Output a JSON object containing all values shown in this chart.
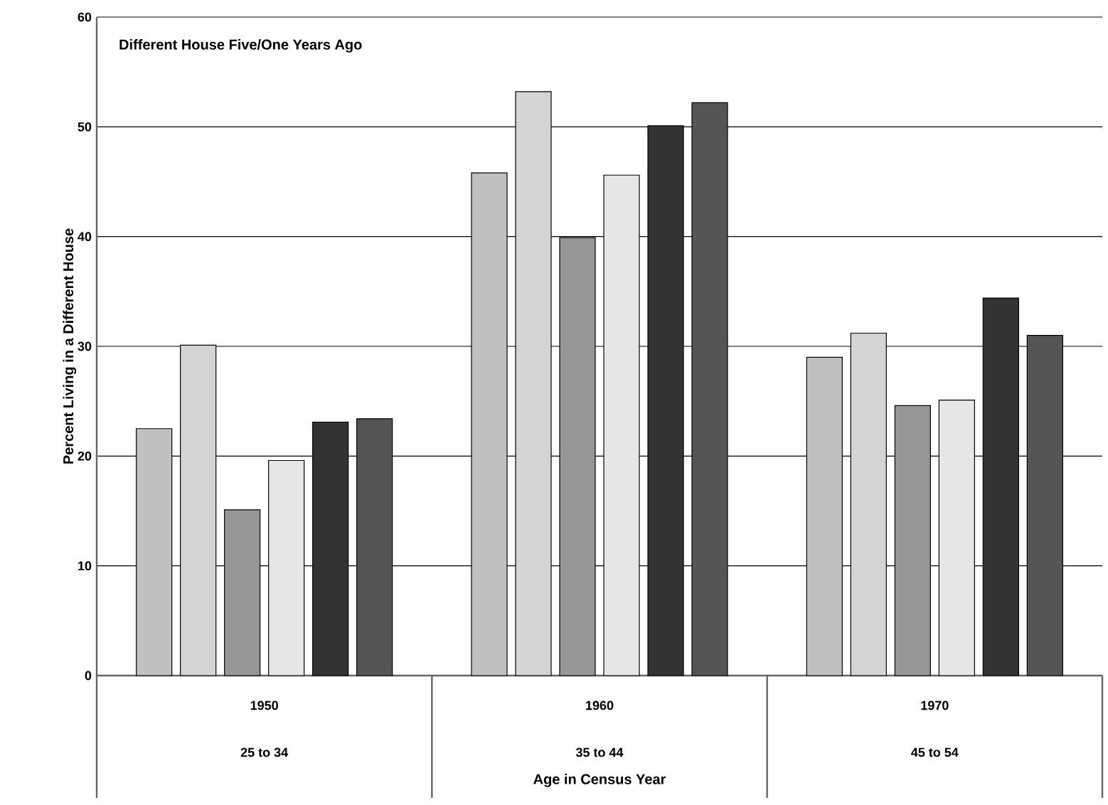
{
  "chart_data": {
    "type": "bar",
    "title": "Different House Five/One Years Ago",
    "xlabel": "Age in Census Year",
    "ylabel": "Percent Living in a Different House",
    "categories": [
      "1950",
      "1960",
      "1970"
    ],
    "annotations": [
      "25 to 34",
      "35 to 44",
      "45 to 54"
    ],
    "series": [
      {
        "color": "#c0c0c0",
        "values": [
          22.5,
          45.8,
          29.0
        ]
      },
      {
        "color": "#d4d4d4",
        "values": [
          30.1,
          53.2,
          31.2
        ]
      },
      {
        "color": "#969696",
        "values": [
          15.1,
          39.9,
          24.6
        ]
      },
      {
        "color": "#e6e6e6",
        "values": [
          19.6,
          45.6,
          25.1
        ]
      },
      {
        "color": "#333333",
        "values": [
          23.1,
          50.1,
          34.4
        ]
      },
      {
        "color": "#555555",
        "values": [
          23.4,
          52.2,
          31.0
        ]
      }
    ],
    "ylim": [
      0,
      60
    ],
    "yticks": [
      0,
      10,
      20,
      30,
      40,
      50,
      60
    ],
    "grid": "y"
  }
}
